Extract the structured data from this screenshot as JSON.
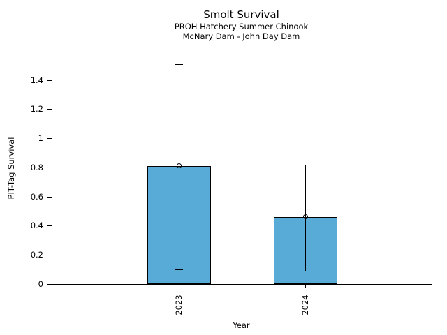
{
  "chart_data": {
    "type": "bar",
    "title": "Smolt Survival",
    "subtitle1": "PROH Hatchery Summer Chinook",
    "subtitle2": "McNary Dam - John Day Dam",
    "xlabel": "Year",
    "ylabel": "PIT-Tag Survival",
    "categories": [
      "2023",
      "2024"
    ],
    "values": [
      0.81,
      0.46
    ],
    "error_low": [
      0.1,
      0.09
    ],
    "error_high": [
      1.51,
      0.82
    ],
    "yticks": [
      0,
      0.2,
      0.4,
      0.6,
      0.8,
      1.0,
      1.2,
      1.4
    ],
    "ytick_labels": [
      "0",
      "0.2",
      "0.4",
      "0.6",
      "0.8",
      "1",
      "1.2",
      "1.4"
    ],
    "ylim": [
      0,
      1.59
    ],
    "grid": false,
    "legend": null,
    "marker": "open-circle",
    "bar_color": "#57ABD6",
    "edge_color": "#000000"
  }
}
